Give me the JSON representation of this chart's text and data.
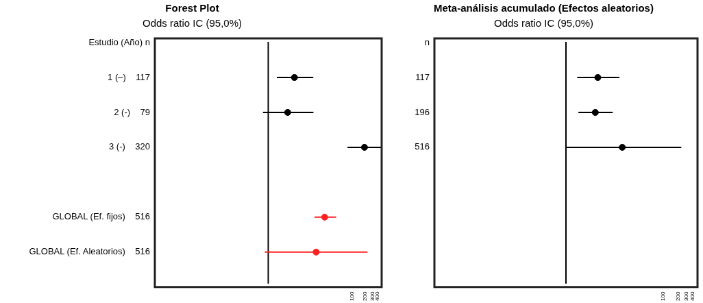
{
  "chart_data": [
    {
      "type": "scatter",
      "orientation": "horizontal",
      "title": "Forest Plot",
      "subtitle": "Odds ratio IC (95,0%)",
      "categories": [
        "Estudio (Año) n",
        "1 (–)    117",
        "2 (-)    79",
        "3 (-)    320",
        null,
        "GLOBAL (Ef. fijos)    516",
        "GLOBAL (Ef. Aleatorios)    516"
      ],
      "values": [
        null,
        4.2,
        2.9,
        195,
        null,
        22,
        13.8
      ],
      "errors": [
        null,
        [
          1.6,
          11.8
        ],
        [
          0.75,
          11.9
        ],
        [
          77,
          500
        ],
        null,
        [
          12.6,
          41.6
        ],
        [
          0.83,
          230
        ]
      ],
      "colors": [
        null,
        "#000000",
        "#000000",
        "#000000",
        null,
        "#ff2020",
        "#ff2020"
      ],
      "xlim": [
        0.002,
        500
      ],
      "xticks": [
        100,
        200,
        300,
        400
      ],
      "log": "x",
      "grid": false,
      "marker": "circle",
      "ref_lines": [
        {
          "axis": "x",
          "value": 1,
          "color": "#000000"
        }
      ]
    },
    {
      "type": "scatter",
      "orientation": "horizontal",
      "title": "Meta-análisis acumulado (Efectos aleatorios)",
      "subtitle": "Odds ratio IC (95,0%)",
      "categories": [
        "n",
        "117",
        "196",
        "516",
        null,
        null,
        null
      ],
      "values": [
        null,
        4.5,
        4.0,
        14.3,
        null,
        null,
        null
      ],
      "errors": [
        null,
        [
          1.7,
          12.5
        ],
        [
          1.8,
          9.1
        ],
        [
          0.97,
          232
        ],
        null,
        null,
        null
      ],
      "colors": [
        null,
        "#000000",
        "#000000",
        "#000000",
        null,
        null,
        null
      ],
      "xlim": [
        0.002,
        500
      ],
      "xticks": [
        100,
        200,
        300,
        400
      ],
      "log": "x",
      "grid": false,
      "marker": "circle",
      "ref_lines": [
        {
          "axis": "x",
          "value": 1,
          "color": "#000000"
        }
      ]
    }
  ]
}
